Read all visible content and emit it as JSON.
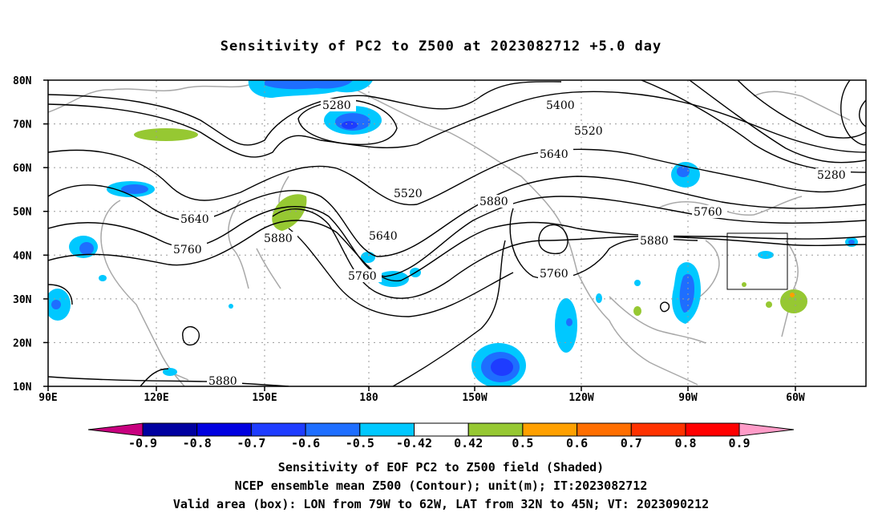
{
  "title": "Sensitivity of PC2 to Z500 at 2023082712 +5.0 day",
  "axes": {
    "lat_labels": [
      "80N",
      "70N",
      "60N",
      "50N",
      "40N",
      "30N",
      "20N",
      "10N"
    ],
    "lon_labels": [
      "90E",
      "120E",
      "150E",
      "180",
      "150W",
      "120W",
      "90W",
      "60W"
    ]
  },
  "contour_labels": [
    "5280",
    "5400",
    "5520",
    "5640",
    "5280",
    "5520",
    "5640",
    "5760",
    "5880",
    "5880",
    "5640",
    "5760",
    "5760",
    "5880",
    "5760",
    "5880"
  ],
  "colorbar": {
    "labels": [
      "-0.9",
      "-0.8",
      "-0.7",
      "-0.6",
      "-0.5",
      "-0.42",
      "0.42",
      "0.5",
      "0.6",
      "0.7",
      "0.8",
      "0.9"
    ],
    "colors": [
      "#c8007f",
      "#0000a0",
      "#0000e0",
      "#1e3cff",
      "#1e6eff",
      "#00c8ff",
      "#ffffff",
      "#96c832",
      "#ffa000",
      "#ff6e00",
      "#ff3200",
      "#ff0000",
      "#ff9cc8"
    ]
  },
  "captions": [
    "Sensitivity of EOF PC2 to Z500 field (Shaded)",
    "NCEP ensemble mean Z500 (Contour); unit(m); IT:2023082712",
    "Valid area (box): LON from 79W to 62W, LAT from 32N to 45N; VT: 2023090212"
  ]
}
